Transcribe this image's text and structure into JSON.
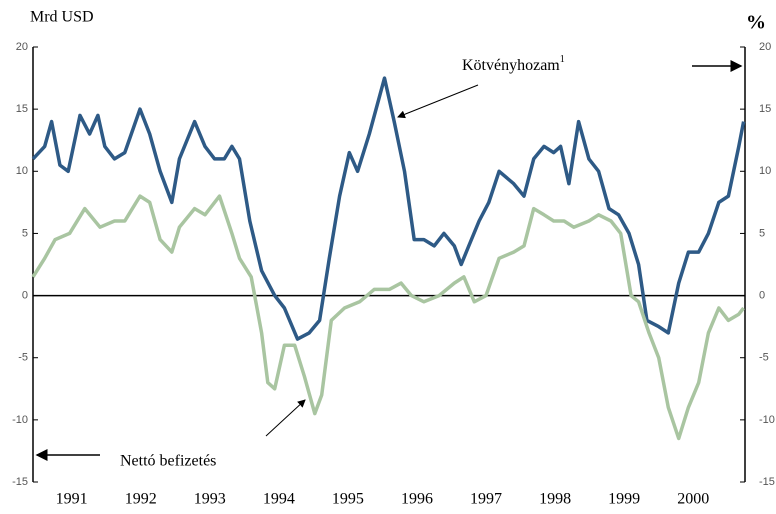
{
  "chart_data": {
    "type": "line",
    "y_label": "Mrd USD",
    "y2_label": "%",
    "xlim": [
      1990.44,
      2000.75
    ],
    "xticks": [
      1991,
      1992,
      1993,
      1994,
      1995,
      1996,
      1997,
      1998,
      1999,
      2000
    ],
    "ylim": [
      -15,
      20
    ],
    "yticks": [
      -15,
      -10,
      -5,
      0,
      5,
      10,
      15,
      20
    ],
    "y2lim": [
      -15,
      20
    ],
    "y2ticks": [
      -15,
      -10,
      -5,
      0,
      5,
      10,
      15,
      20
    ],
    "series": [
      {
        "name": "Kötvényhozam",
        "footnote_marker": "1",
        "axis": "y2",
        "color": "#2e5a86",
        "x": [
          1990.44,
          1990.61,
          1990.71,
          1990.83,
          1990.95,
          1991.12,
          1991.26,
          1991.38,
          1991.48,
          1991.62,
          1991.77,
          1991.99,
          1992.13,
          1992.28,
          1992.45,
          1992.56,
          1992.78,
          1992.93,
          1993.07,
          1993.21,
          1993.32,
          1993.43,
          1993.58,
          1993.75,
          1993.94,
          1994.08,
          1994.27,
          1994.44,
          1994.59,
          1994.73,
          1994.88,
          1995.02,
          1995.14,
          1995.31,
          1995.53,
          1995.67,
          1995.82,
          1995.96,
          1996.1,
          1996.25,
          1996.39,
          1996.54,
          1996.64,
          1996.75,
          1996.9,
          1997.04,
          1997.19,
          1997.4,
          1997.55,
          1997.69,
          1997.84,
          1997.98,
          1998.08,
          1998.2,
          1998.34,
          1998.49,
          1998.63,
          1998.78,
          1998.92,
          1999.07,
          1999.21,
          1999.33,
          1999.5,
          1999.64,
          1999.79,
          1999.93,
          2000.08,
          2000.22,
          2000.37,
          2000.51,
          2000.66,
          2000.73
        ],
        "values": [
          11,
          12,
          14,
          10.5,
          10,
          14.5,
          13,
          14.5,
          12,
          11,
          11.5,
          15,
          13,
          10,
          7.5,
          11,
          14,
          12,
          11,
          11,
          12,
          11,
          6,
          2,
          0,
          -1,
          -3.5,
          -3,
          -2,
          3,
          8,
          11.5,
          10,
          13,
          17.5,
          14,
          10,
          4.5,
          4.5,
          4,
          5,
          4,
          2.5,
          4,
          6,
          7.5,
          10,
          9,
          8,
          11,
          12,
          11.5,
          12,
          9,
          14,
          11,
          10,
          7,
          6.5,
          5,
          2.5,
          -2,
          -2.5,
          -3,
          1,
          3.5,
          3.5,
          5,
          7.5,
          8,
          12,
          14
        ]
      },
      {
        "name": "Nettó befizetés",
        "axis": "y",
        "color": "#a9c5a1",
        "x": [
          1990.44,
          1990.61,
          1990.76,
          1990.97,
          1991.19,
          1991.41,
          1991.62,
          1991.77,
          1991.99,
          1992.13,
          1992.28,
          1992.45,
          1992.56,
          1992.78,
          1992.93,
          1993.14,
          1993.32,
          1993.43,
          1993.6,
          1993.75,
          1993.84,
          1993.94,
          1994.08,
          1994.23,
          1994.37,
          1994.52,
          1994.62,
          1994.76,
          1994.95,
          1995.17,
          1995.38,
          1995.6,
          1995.77,
          1995.92,
          1996.1,
          1996.32,
          1996.54,
          1996.68,
          1996.83,
          1997.0,
          1997.19,
          1997.4,
          1997.55,
          1997.69,
          1997.84,
          1997.98,
          1998.13,
          1998.27,
          1998.49,
          1998.63,
          1998.81,
          1998.95,
          1999.1,
          1999.21,
          1999.36,
          1999.5,
          1999.64,
          1999.79,
          1999.93,
          2000.08,
          2000.22,
          2000.37,
          2000.51,
          2000.66,
          2000.73
        ],
        "values": [
          1.5,
          3,
          4.5,
          5,
          7,
          5.5,
          6,
          6,
          8,
          7.5,
          4.5,
          3.5,
          5.5,
          7,
          6.5,
          8,
          5,
          3,
          1.5,
          -3,
          -7,
          -7.5,
          -4,
          -4,
          -6.5,
          -9.5,
          -8,
          -2,
          -1,
          -0.5,
          0.5,
          0.5,
          1,
          0,
          -0.5,
          0,
          1,
          1.5,
          -0.5,
          0,
          3,
          3.5,
          4,
          7,
          6.5,
          6,
          6,
          5.5,
          6,
          6.5,
          6,
          5,
          0,
          -0.5,
          -3,
          -5,
          -9,
          -11.5,
          -9,
          -7,
          -3,
          -1,
          -2,
          -1.5,
          -1
        ]
      }
    ]
  }
}
